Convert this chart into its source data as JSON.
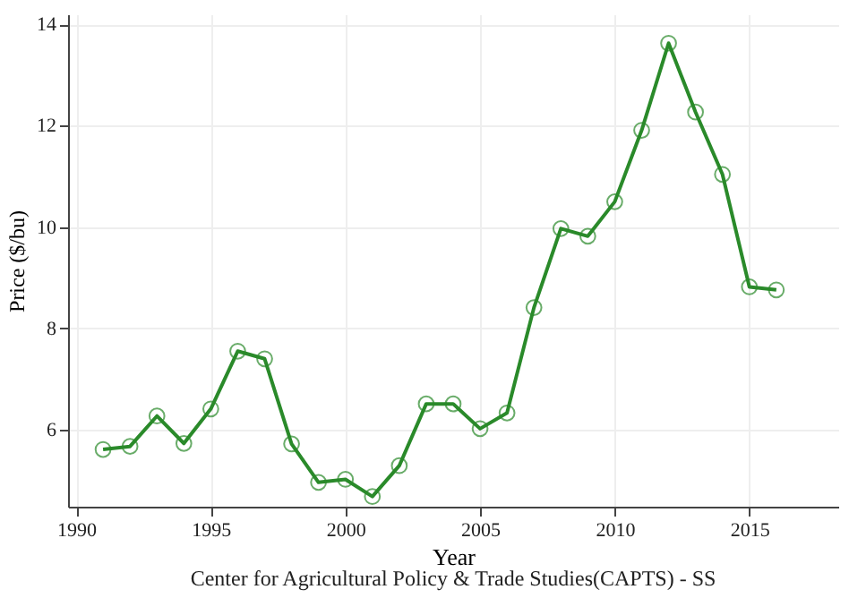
{
  "chart_data": {
    "type": "line",
    "xlabel": "Year",
    "ylabel": "Price ($/bu)",
    "annotations": [
      "Center for Agricultural Policy & Trade Studies(CAPTS) - SS"
    ],
    "x": [
      1991,
      1992,
      1993,
      1994,
      1995,
      1996,
      1997,
      1998,
      1999,
      2000,
      2001,
      2002,
      2003,
      2004,
      2005,
      2006,
      2007,
      2008,
      2009,
      2010,
      2011,
      2012,
      2013,
      2014,
      2015,
      2016
    ],
    "series": [
      {
        "color": "#2a8a2a",
        "values": [
          5.61,
          5.67,
          6.27,
          5.73,
          6.41,
          7.55,
          7.4,
          5.72,
          4.96,
          5.02,
          4.68,
          5.29,
          6.51,
          6.51,
          6.02,
          6.33,
          8.41,
          9.97,
          9.82,
          10.5,
          11.91,
          13.63,
          12.27,
          11.04,
          8.82,
          8.76
        ]
      }
    ],
    "xlim": [
      1989.7,
      2018.3
    ],
    "xticks": [
      1990,
      1995,
      2000,
      2005,
      2010,
      2015
    ],
    "ylim": [
      4.48,
      14.2
    ],
    "yticks": [
      6,
      8,
      10,
      12,
      14
    ],
    "grid": true,
    "marker": "circle",
    "line_style": "solid"
  }
}
